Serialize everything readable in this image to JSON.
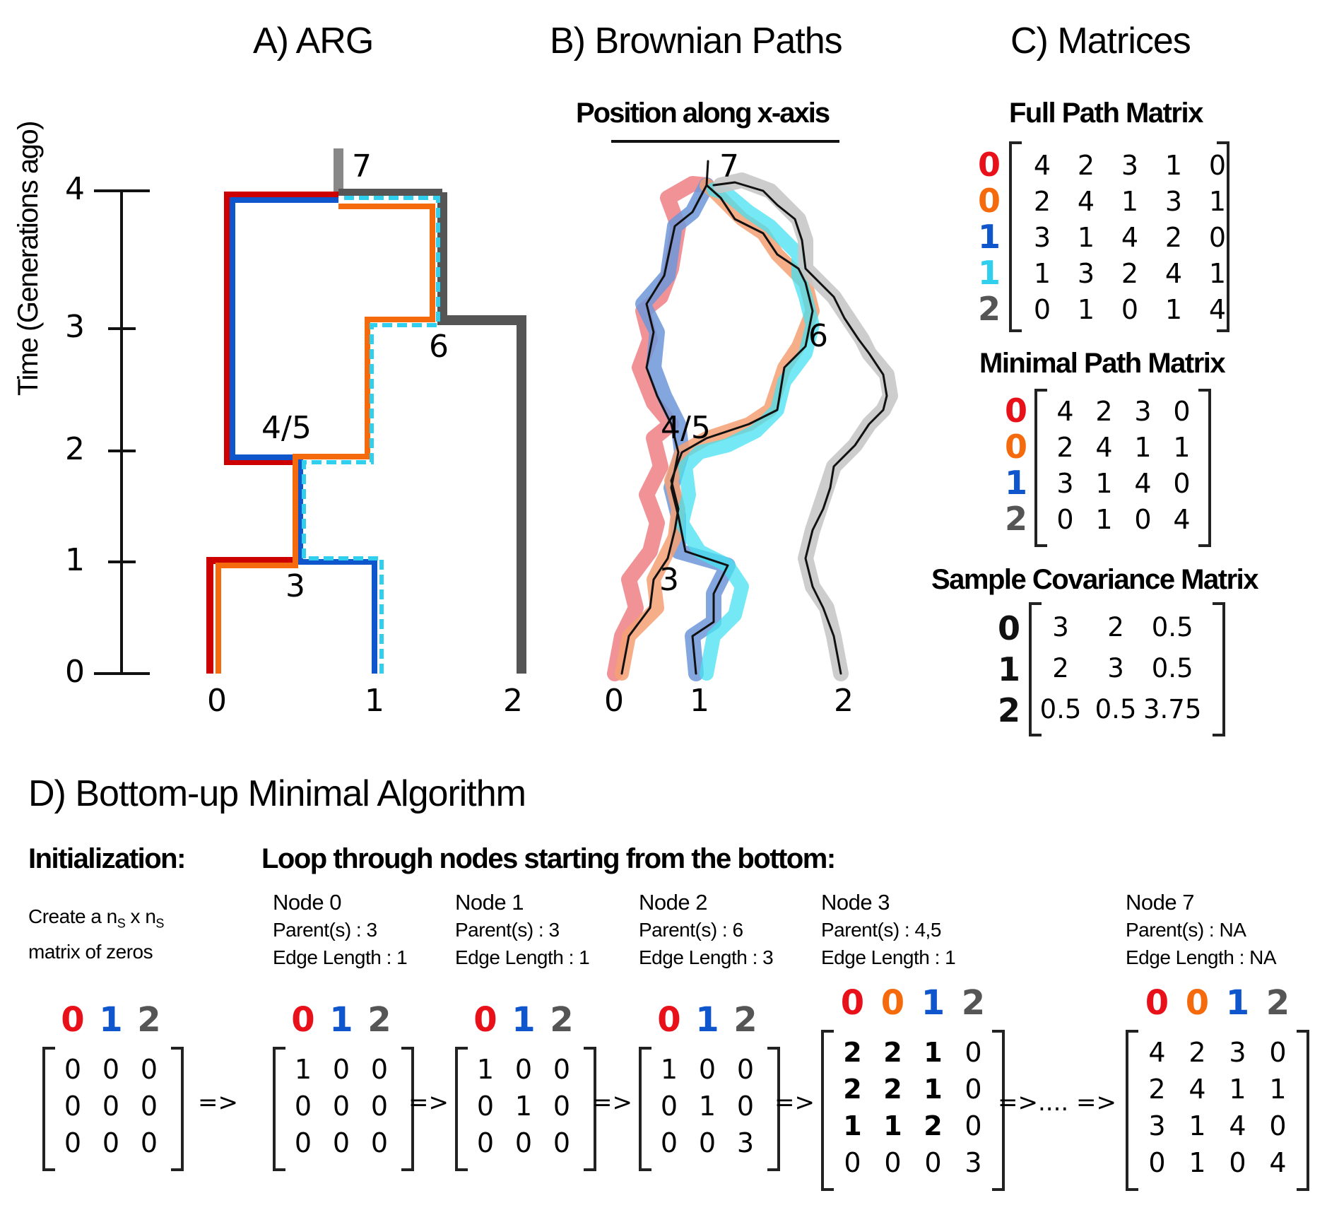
{
  "colors": {
    "red": "#e8111a",
    "orange": "#f46a0d",
    "blue": "#0f55cc",
    "cyan": "#30cfee",
    "gray": "#555555",
    "dark": "#222222"
  },
  "panels": {
    "A": {
      "title": "A) ARG",
      "y_axis_label": "Time (Generations ago)",
      "y_ticks": [
        "0",
        "1",
        "2",
        "3",
        "4"
      ],
      "sample_labels": [
        "0",
        "1",
        "2"
      ],
      "node_labels": [
        "7",
        "6",
        "4/5",
        "3"
      ]
    },
    "B": {
      "title": "B) Brownian Paths",
      "axis_label": "Position along x-axis",
      "sample_labels": [
        "0",
        "1",
        "2"
      ],
      "node_labels": [
        "7",
        "6",
        "4/5",
        "3"
      ]
    },
    "C": {
      "title": "C) Matrices",
      "full": {
        "title": "Full Path Matrix",
        "rows": [
          "0",
          "0",
          "1",
          "1",
          "2"
        ],
        "values": [
          [
            "4",
            "2",
            "3",
            "1",
            "0"
          ],
          [
            "2",
            "4",
            "1",
            "3",
            "1"
          ],
          [
            "3",
            "1",
            "4",
            "2",
            "0"
          ],
          [
            "1",
            "3",
            "2",
            "4",
            "1"
          ],
          [
            "0",
            "1",
            "0",
            "1",
            "4"
          ]
        ]
      },
      "minimal": {
        "title": "Minimal Path Matrix",
        "rows": [
          "0",
          "0",
          "1",
          "2"
        ],
        "values": [
          [
            "4",
            "2",
            "3",
            "0"
          ],
          [
            "2",
            "4",
            "1",
            "1"
          ],
          [
            "3",
            "1",
            "4",
            "0"
          ],
          [
            "0",
            "1",
            "0",
            "4"
          ]
        ]
      },
      "covariance": {
        "title": "Sample Covariance Matrix",
        "rows": [
          "0",
          "1",
          "2"
        ],
        "values": [
          [
            "3",
            "2",
            "0.5"
          ],
          [
            "2",
            "3",
            "0.5"
          ],
          [
            "0.5",
            "0.5",
            "3.75"
          ]
        ]
      }
    },
    "D": {
      "title": "D) Bottom-up Minimal Algorithm",
      "init_heading": "Initialization:",
      "init_text_1": "Create a n",
      "init_sub": "S",
      "init_text_2": " x n",
      "init_text_3": "matrix of zeros",
      "loop_heading": "Loop through nodes starting from the bottom:",
      "arrow": "=>",
      "ellipsis_arrow": "=>.... =>",
      "steps": [
        {
          "header": [
            "",
            "",
            ""
          ],
          "cols": [
            "0",
            "1",
            "2"
          ],
          "values": [
            [
              "0",
              "0",
              "0"
            ],
            [
              "0",
              "0",
              "0"
            ],
            [
              "0",
              "0",
              "0"
            ]
          ]
        },
        {
          "header": [
            "Node 0",
            "Parent(s) : 3",
            "Edge Length : 1"
          ],
          "cols": [
            "0",
            "1",
            "2"
          ],
          "values": [
            [
              "1",
              "0",
              "0"
            ],
            [
              "0",
              "0",
              "0"
            ],
            [
              "0",
              "0",
              "0"
            ]
          ]
        },
        {
          "header": [
            "Node 1",
            "Parent(s) : 3",
            "Edge Length : 1"
          ],
          "cols": [
            "0",
            "1",
            "2"
          ],
          "values": [
            [
              "1",
              "0",
              "0"
            ],
            [
              "0",
              "1",
              "0"
            ],
            [
              "0",
              "0",
              "0"
            ]
          ]
        },
        {
          "header": [
            "Node 2",
            "Parent(s) : 6",
            "Edge Length : 3"
          ],
          "cols": [
            "0",
            "1",
            "2"
          ],
          "values": [
            [
              "1",
              "0",
              "0"
            ],
            [
              "0",
              "1",
              "0"
            ],
            [
              "0",
              "0",
              "3"
            ]
          ]
        },
        {
          "header": [
            "Node 3",
            "Parent(s) : 4,5",
            "Edge Length : 1"
          ],
          "cols": [
            "0",
            "0",
            "1",
            "2"
          ],
          "values": [
            [
              "2",
              "2",
              "1",
              "0"
            ],
            [
              "2",
              "2",
              "1",
              "0"
            ],
            [
              "1",
              "1",
              "2",
              "0"
            ],
            [
              "0",
              "0",
              "0",
              "3"
            ]
          ]
        },
        {
          "header": [
            "Node 7",
            "Parent(s) : NA",
            "Edge Length : NA"
          ],
          "cols": [
            "0",
            "0",
            "1",
            "2"
          ],
          "values": [
            [
              "4",
              "2",
              "3",
              "0"
            ],
            [
              "2",
              "4",
              "1",
              "1"
            ],
            [
              "3",
              "1",
              "4",
              "0"
            ],
            [
              "0",
              "1",
              "0",
              "4"
            ]
          ]
        }
      ]
    }
  }
}
